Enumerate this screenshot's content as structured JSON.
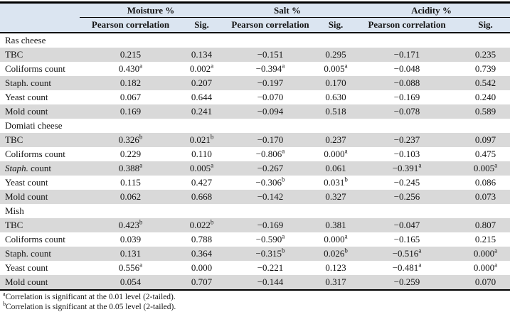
{
  "colors": {
    "header_bg": "#dbe5f1",
    "band_bg": "#d9d9d9",
    "border": "#000000",
    "page_bg": "#ffffff"
  },
  "table": {
    "col_groups": [
      {
        "label": "Moisture %"
      },
      {
        "label": "Salt %"
      },
      {
        "label": "Acidity %"
      }
    ],
    "subheaders": [
      "Pearson correlation",
      "Sig."
    ],
    "sections": [
      {
        "name": "Ras cheese",
        "rows": [
          {
            "label": "TBC",
            "italic_prefix": "",
            "cells": [
              {
                "v": "0.215",
                "s": ""
              },
              {
                "v": "0.134",
                "s": ""
              },
              {
                "v": "−0.151",
                "s": ""
              },
              {
                "v": "0.295",
                "s": ""
              },
              {
                "v": "−0.171",
                "s": ""
              },
              {
                "v": "0.235",
                "s": ""
              }
            ]
          },
          {
            "label": "Coliforms count",
            "italic_prefix": "",
            "cells": [
              {
                "v": "0.430",
                "s": "a"
              },
              {
                "v": "0.002",
                "s": "a"
              },
              {
                "v": "−0.394",
                "s": "a"
              },
              {
                "v": "0.005",
                "s": "a"
              },
              {
                "v": "−0.048",
                "s": ""
              },
              {
                "v": "0.739",
                "s": ""
              }
            ]
          },
          {
            "label": "Staph. count",
            "italic_prefix": "",
            "cells": [
              {
                "v": "0.182",
                "s": ""
              },
              {
                "v": "0.207",
                "s": ""
              },
              {
                "v": "−0.197",
                "s": ""
              },
              {
                "v": "0.170",
                "s": ""
              },
              {
                "v": "−0.088",
                "s": ""
              },
              {
                "v": "0.542",
                "s": ""
              }
            ]
          },
          {
            "label": "Yeast count",
            "italic_prefix": "",
            "cells": [
              {
                "v": "0.067",
                "s": ""
              },
              {
                "v": "0.644",
                "s": ""
              },
              {
                "v": "−0.070",
                "s": ""
              },
              {
                "v": "0.630",
                "s": ""
              },
              {
                "v": "−0.169",
                "s": ""
              },
              {
                "v": "0.240",
                "s": ""
              }
            ]
          },
          {
            "label": "Mold count",
            "italic_prefix": "",
            "cells": [
              {
                "v": "0.169",
                "s": ""
              },
              {
                "v": "0.241",
                "s": ""
              },
              {
                "v": "−0.094",
                "s": ""
              },
              {
                "v": "0.518",
                "s": ""
              },
              {
                "v": "−0.078",
                "s": ""
              },
              {
                "v": "0.589",
                "s": ""
              }
            ]
          }
        ]
      },
      {
        "name": "Domiati cheese",
        "rows": [
          {
            "label": "TBC",
            "italic_prefix": "",
            "cells": [
              {
                "v": "0.326",
                "s": "b"
              },
              {
                "v": "0.021",
                "s": "b"
              },
              {
                "v": "−0.170",
                "s": ""
              },
              {
                "v": "0.237",
                "s": ""
              },
              {
                "v": "−0.237",
                "s": ""
              },
              {
                "v": "0.097",
                "s": ""
              }
            ]
          },
          {
            "label": "Coliforms count",
            "italic_prefix": "",
            "cells": [
              {
                "v": "0.229",
                "s": ""
              },
              {
                "v": "0.110",
                "s": ""
              },
              {
                "v": "−0.806",
                "s": "a"
              },
              {
                "v": "0.000",
                "s": "a"
              },
              {
                "v": "−0.103",
                "s": ""
              },
              {
                "v": "0.475",
                "s": ""
              }
            ]
          },
          {
            "label": " count",
            "italic_prefix": "Staph.",
            "cells": [
              {
                "v": "0.388",
                "s": "a"
              },
              {
                "v": "0.005",
                "s": "a"
              },
              {
                "v": "−0.267",
                "s": ""
              },
              {
                "v": "0.061",
                "s": ""
              },
              {
                "v": "−0.391",
                "s": "a"
              },
              {
                "v": "0.005",
                "s": "a"
              }
            ]
          },
          {
            "label": "Yeast count",
            "italic_prefix": "",
            "cells": [
              {
                "v": "0.115",
                "s": ""
              },
              {
                "v": "0.427",
                "s": ""
              },
              {
                "v": "−0.306",
                "s": "b"
              },
              {
                "v": "0.031",
                "s": "b"
              },
              {
                "v": "−0.245",
                "s": ""
              },
              {
                "v": "0.086",
                "s": ""
              }
            ]
          },
          {
            "label": "Mold count",
            "italic_prefix": "",
            "cells": [
              {
                "v": "0.062",
                "s": ""
              },
              {
                "v": "0.668",
                "s": ""
              },
              {
                "v": "−0.142",
                "s": ""
              },
              {
                "v": "0.327",
                "s": ""
              },
              {
                "v": "−0.256",
                "s": ""
              },
              {
                "v": "0.073",
                "s": ""
              }
            ]
          }
        ]
      },
      {
        "name": "Mish",
        "rows": [
          {
            "label": "TBC",
            "italic_prefix": "",
            "cells": [
              {
                "v": "0.423",
                "s": "b"
              },
              {
                "v": "0.022",
                "s": "b"
              },
              {
                "v": "−0.169",
                "s": ""
              },
              {
                "v": "0.381",
                "s": ""
              },
              {
                "v": "−0.047",
                "s": ""
              },
              {
                "v": "0.807",
                "s": ""
              }
            ]
          },
          {
            "label": "Coliforms count",
            "italic_prefix": "",
            "cells": [
              {
                "v": "0.039",
                "s": ""
              },
              {
                "v": "0.788",
                "s": ""
              },
              {
                "v": "−0.590",
                "s": "a"
              },
              {
                "v": "0.000",
                "s": "a"
              },
              {
                "v": "−0.165",
                "s": ""
              },
              {
                "v": "0.215",
                "s": ""
              }
            ]
          },
          {
            "label": "Staph. count",
            "italic_prefix": "",
            "cells": [
              {
                "v": "0.131",
                "s": ""
              },
              {
                "v": "0.364",
                "s": ""
              },
              {
                "v": "−0.315",
                "s": "b"
              },
              {
                "v": "0.026",
                "s": "b"
              },
              {
                "v": "−0.516",
                "s": "a"
              },
              {
                "v": "0.000",
                "s": "a"
              }
            ]
          },
          {
            "label": "Yeast count",
            "italic_prefix": "",
            "cells": [
              {
                "v": "0.556",
                "s": "a"
              },
              {
                "v": "0.000",
                "s": ""
              },
              {
                "v": "−0.221",
                "s": ""
              },
              {
                "v": "0.123",
                "s": ""
              },
              {
                "v": "−0.481",
                "s": "a"
              },
              {
                "v": "0.000",
                "s": "a"
              }
            ]
          },
          {
            "label": "Mold count",
            "italic_prefix": "",
            "cells": [
              {
                "v": "0.054",
                "s": ""
              },
              {
                "v": "0.707",
                "s": ""
              },
              {
                "v": "−0.144",
                "s": ""
              },
              {
                "v": "0.317",
                "s": ""
              },
              {
                "v": "−0.259",
                "s": ""
              },
              {
                "v": "0.070",
                "s": ""
              }
            ]
          }
        ]
      }
    ],
    "footnotes": [
      {
        "sup": "a",
        "text": "Correlation is significant at the 0.01 level (2-tailed)."
      },
      {
        "sup": "b",
        "text": "Correlation is significant at the 0.05 level (2-tailed)."
      }
    ]
  }
}
